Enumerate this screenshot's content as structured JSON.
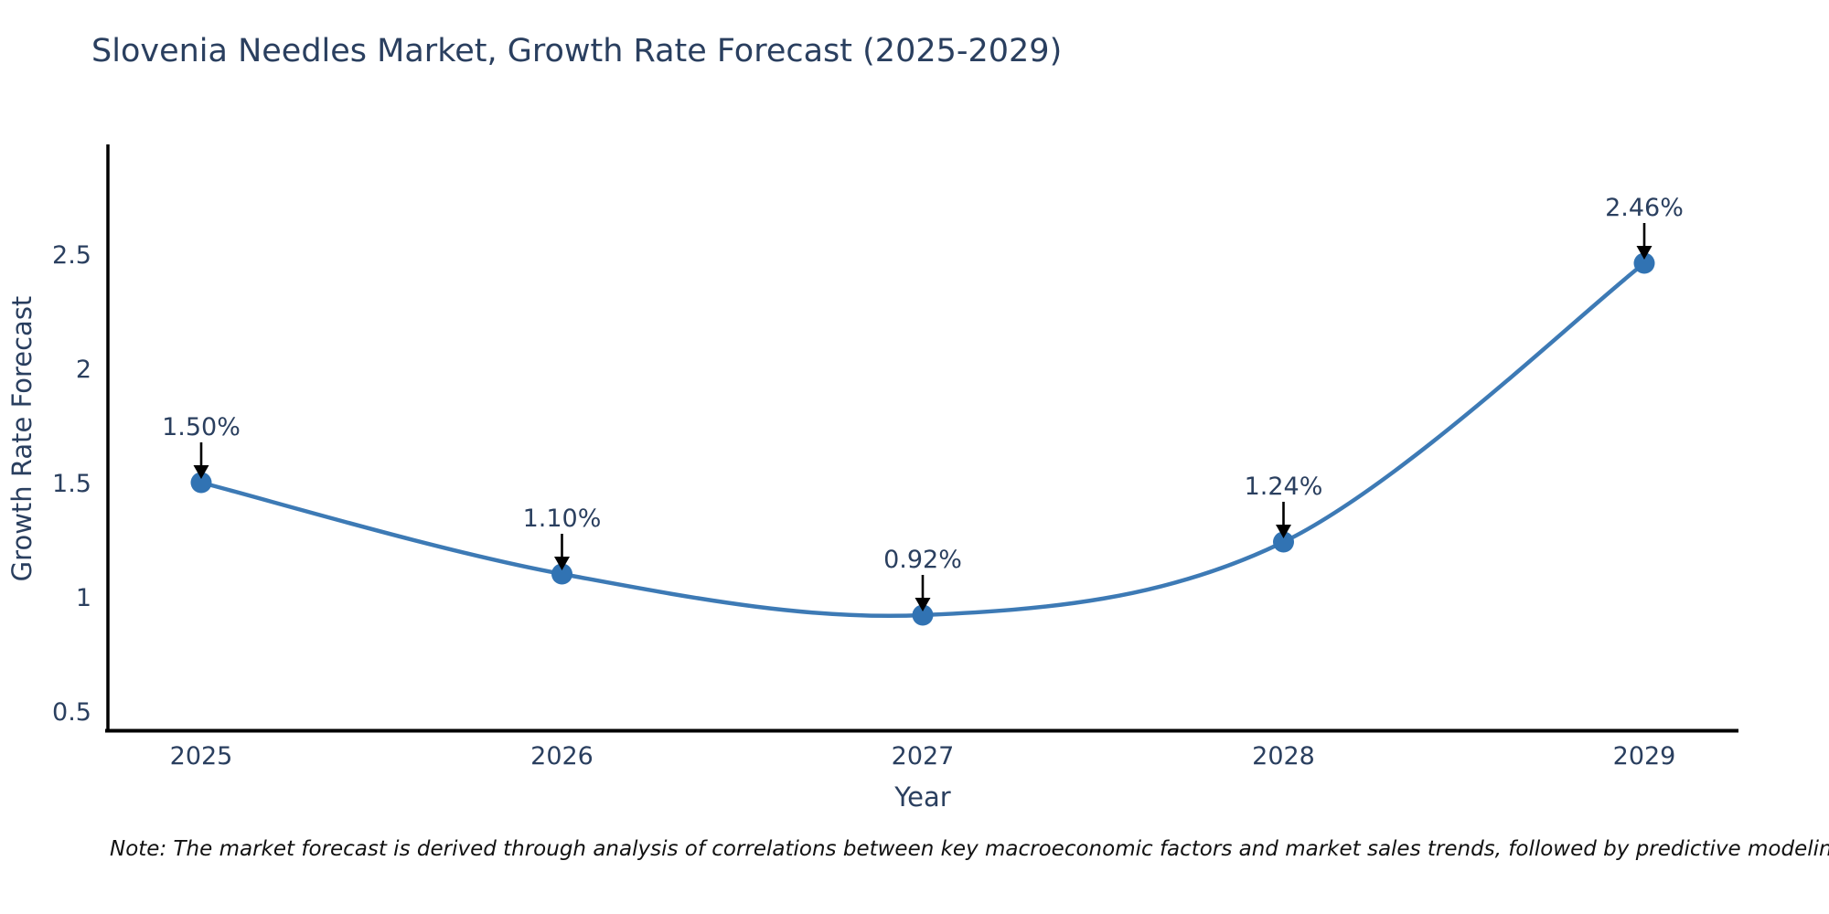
{
  "chart_data": {
    "type": "line",
    "title": "Slovenia Needles Market, Growth Rate Forecast (2025-2029)",
    "categories": [
      "2025",
      "2026",
      "2027",
      "2028",
      "2029"
    ],
    "values": [
      1.5,
      1.1,
      0.92,
      1.24,
      2.46
    ],
    "point_labels": [
      "1.50%",
      "1.10%",
      "0.92%",
      "1.24%",
      "2.46%"
    ],
    "xlabel": "Year",
    "ylabel": "Growth Rate Forecast",
    "yticks": [
      0.5,
      1,
      1.5,
      2,
      2.5
    ],
    "ytick_labels": [
      "0.5",
      "1",
      "1.5",
      "2",
      "2.5"
    ],
    "ylim": [
      0.4,
      2.97
    ],
    "grid": false,
    "legend": "none",
    "line_shape": "spline",
    "line_color": "#3d7ab5",
    "marker_color": "#3173b3",
    "arrow_color": "#000000",
    "axis_color": "#000000",
    "text_color": "#2a3f5f"
  },
  "note": "Note: The market forecast is derived through analysis of correlations between key macroeconomic factors and market sales trends, followed by predictive modeling to project future sales"
}
